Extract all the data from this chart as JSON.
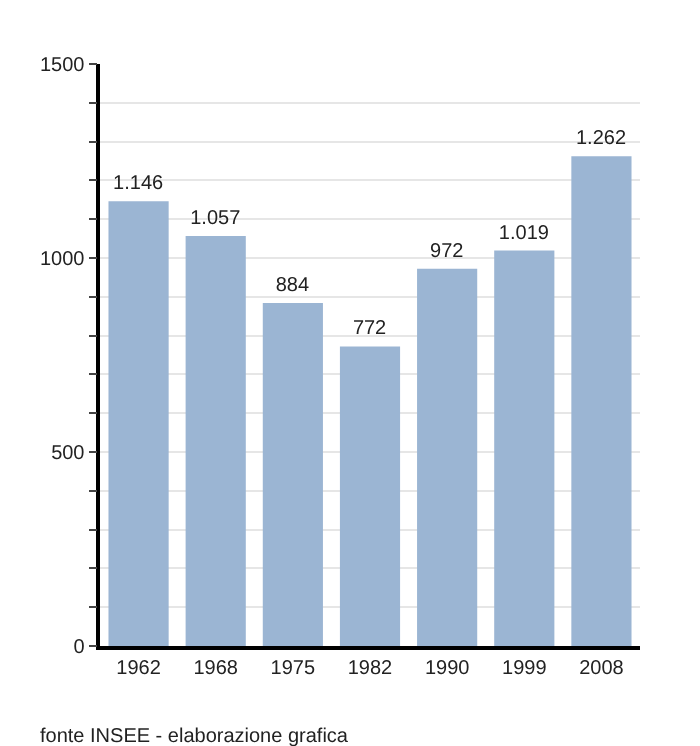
{
  "chart_data": {
    "type": "bar",
    "categories": [
      "1962",
      "1968",
      "1975",
      "1982",
      "1990",
      "1999",
      "2008"
    ],
    "values": [
      1146,
      1057,
      884,
      772,
      972,
      1019,
      1262
    ],
    "value_labels": [
      "1.146",
      "1.057",
      "884",
      "772",
      "972",
      "1.019",
      "1.262"
    ],
    "color": "#9bb5d3",
    "ylim": [
      0,
      1500
    ],
    "yticks": [
      0,
      {
        "value": 100,
        "label": null
      },
      {
        "value": 200,
        "label": null
      },
      {
        "value": 300,
        "label": null
      },
      {
        "value": 400,
        "label": null
      },
      500,
      {
        "value": 600,
        "label": null
      },
      {
        "value": 700,
        "label": null
      },
      {
        "value": 800,
        "label": null
      },
      {
        "value": 900,
        "label": null
      },
      1000,
      {
        "value": 1100,
        "label": null
      },
      {
        "value": 1200,
        "label": null
      },
      {
        "value": 1300,
        "label": null
      },
      {
        "value": 1400,
        "label": null
      },
      1500
    ],
    "grid": "y",
    "annotations": [
      "fonte INSEE - elaborazione grafica"
    ]
  }
}
